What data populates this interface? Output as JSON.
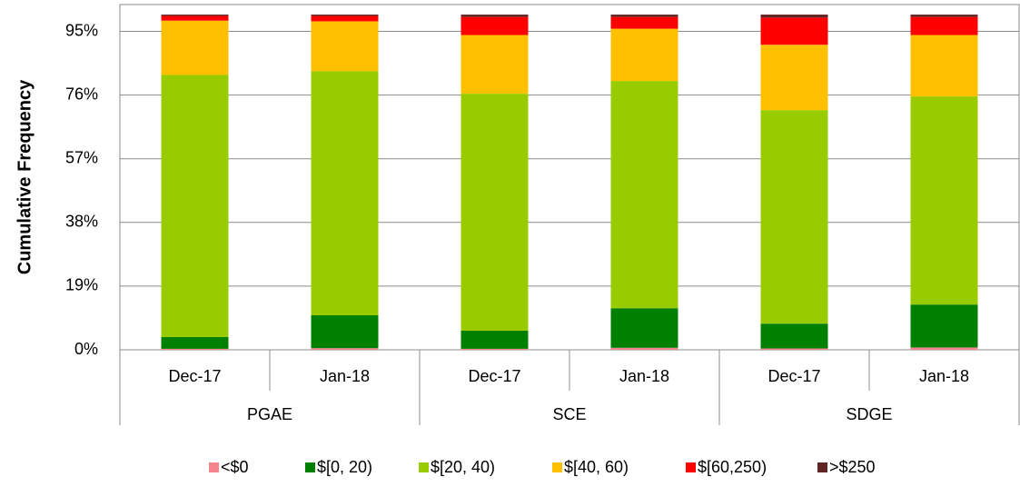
{
  "chart_data": {
    "type": "stacked-bar",
    "ylabel": "Cumulative Frequency",
    "groups": [
      "PGAE",
      "SCE",
      "SDGE"
    ],
    "categories": [
      "Dec-17",
      "Jan-18",
      "Dec-17",
      "Jan-18",
      "Dec-17",
      "Jan-18"
    ],
    "series": [
      {
        "name": "<$0",
        "color": "#f4858e",
        "values": [
          0.3,
          0.5,
          0.3,
          0.6,
          0.4,
          0.7
        ]
      },
      {
        "name": "$[0, 20)",
        "color": "#008000",
        "values": [
          3.5,
          9.8,
          5.4,
          11.8,
          7.4,
          12.8
        ]
      },
      {
        "name": "$[20, 40)",
        "color": "#99cc00",
        "values": [
          78.2,
          72.8,
          70.7,
          67.8,
          63.7,
          62.1
        ]
      },
      {
        "name": "$[40, 60)",
        "color": "#ffc000",
        "values": [
          16.2,
          14.9,
          17.5,
          15.6,
          19.5,
          18.3
        ]
      },
      {
        "name": "$[60,250)",
        "color": "#ff0000",
        "values": [
          1.4,
          1.6,
          5.4,
          3.5,
          8.1,
          5.4
        ]
      },
      {
        "name": ">$250",
        "color": "#632523",
        "values": [
          0.4,
          0.4,
          0.7,
          0.7,
          0.9,
          0.7
        ]
      }
    ],
    "ylim": [
      0,
      103
    ],
    "yticks": [
      {
        "value": 0,
        "label": "0%"
      },
      {
        "value": 19,
        "label": "19%"
      },
      {
        "value": 38,
        "label": "38%"
      },
      {
        "value": 57,
        "label": "57%"
      },
      {
        "value": 76,
        "label": "76%"
      },
      {
        "value": 95,
        "label": "95%"
      }
    ],
    "grid": true
  }
}
